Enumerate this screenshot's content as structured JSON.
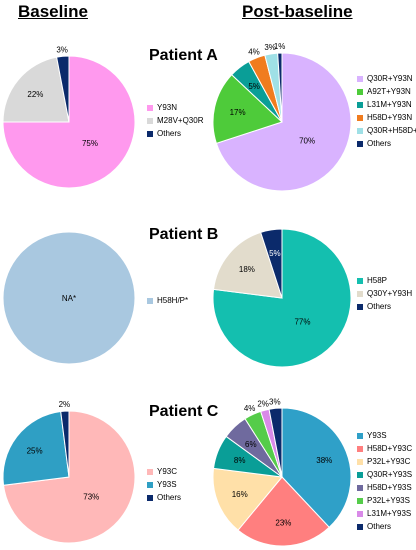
{
  "headers": {
    "baseline": "Baseline",
    "post": "Post-baseline"
  },
  "patients": [
    {
      "label": "Patient A"
    },
    {
      "label": "Patient B"
    },
    {
      "label": "Patient C"
    }
  ],
  "chart_data": [
    {
      "type": "pie",
      "patient": "Patient A",
      "timepoint": "Baseline",
      "slices": [
        {
          "label": "Y93N",
          "value": 75,
          "text": "75%",
          "color": "#ff99ee"
        },
        {
          "label": "M28V+Q30R",
          "value": 22,
          "text": "22%",
          "color": "#d9d9d9"
        },
        {
          "label": "Others",
          "value": 3,
          "text": "3%",
          "color": "#0b2a6b"
        }
      ]
    },
    {
      "type": "pie",
      "patient": "Patient A",
      "timepoint": "Post-baseline",
      "slices": [
        {
          "label": "Q30R+Y93N",
          "value": 70,
          "text": "70%",
          "color": "#d9b3ff"
        },
        {
          "label": "A92T+Y93N",
          "value": 17,
          "text": "17%",
          "color": "#4ecb3a"
        },
        {
          "label": "L31M+Y93N",
          "value": 5,
          "text": "5%",
          "color": "#0a9e97"
        },
        {
          "label": "H58D+Y93N",
          "value": 4,
          "text": "4%",
          "color": "#f07c1f"
        },
        {
          "label": "Q30R+H58D+",
          "value": 3,
          "text": "3%",
          "color": "#9fe0e6"
        },
        {
          "label": "Others",
          "value": 1,
          "text": "1%",
          "color": "#0b2a6b"
        }
      ]
    },
    {
      "type": "pie",
      "patient": "Patient B",
      "timepoint": "Baseline",
      "slices": [
        {
          "label": "H58H/P*",
          "value": 100,
          "text": "NA*",
          "color": "#a9c8e0"
        }
      ]
    },
    {
      "type": "pie",
      "patient": "Patient B",
      "timepoint": "Post-baseline",
      "slices": [
        {
          "label": "H58P",
          "value": 77,
          "text": "77%",
          "color": "#14bfaf"
        },
        {
          "label": "Q30Y+Y93H",
          "value": 18,
          "text": "18%",
          "color": "#e2dccc"
        },
        {
          "label": "Others",
          "value": 5,
          "text": "5%",
          "color": "#0b2a6b"
        }
      ]
    },
    {
      "type": "pie",
      "patient": "Patient C",
      "timepoint": "Baseline",
      "slices": [
        {
          "label": "Y93C",
          "value": 73,
          "text": "73%",
          "color": "#ffb8b8"
        },
        {
          "label": "Y93S",
          "value": 25,
          "text": "25%",
          "color": "#2f9fc4"
        },
        {
          "label": "Others",
          "value": 2,
          "text": "2%",
          "color": "#0b2a6b"
        }
      ]
    },
    {
      "type": "pie",
      "patient": "Patient C",
      "timepoint": "Post-baseline",
      "slices": [
        {
          "label": "Y93S",
          "value": 38,
          "text": "38%",
          "color": "#2fa0c8"
        },
        {
          "label": "H58D+Y93C",
          "value": 23,
          "text": "23%",
          "color": "#ff7f7f"
        },
        {
          "label": "P32L+Y93C",
          "value": 16,
          "text": "16%",
          "color": "#ffe0a8"
        },
        {
          "label": "Q30R+Y93S",
          "value": 8,
          "text": "8%",
          "color": "#0a9e97"
        },
        {
          "label": "H58D+Y93S",
          "value": 6,
          "text": "6%",
          "color": "#6f6a9e"
        },
        {
          "label": "P32L+Y93S",
          "value": 4,
          "text": "4%",
          "color": "#55cc4a"
        },
        {
          "label": "L31M+Y93S",
          "value": 2,
          "text": "2%",
          "color": "#d98ae8"
        },
        {
          "label": "Others",
          "value": 3,
          "text": "3%",
          "color": "#0b2a6b"
        }
      ]
    }
  ]
}
